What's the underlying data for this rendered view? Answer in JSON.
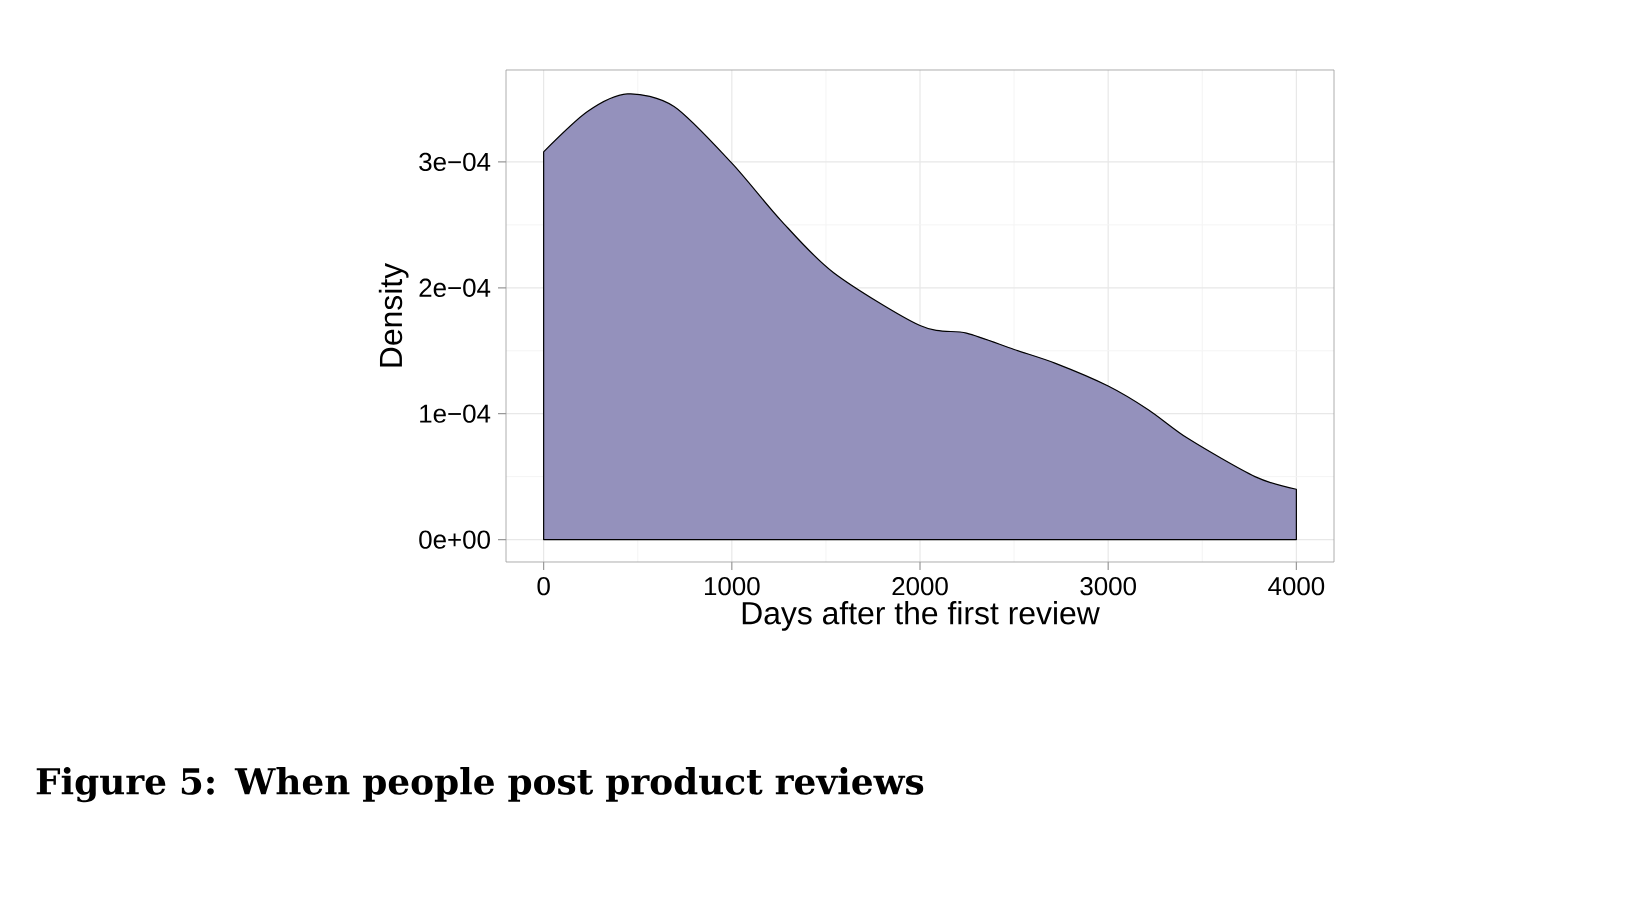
{
  "chart_data": {
    "type": "area",
    "xlabel": "Days after the first review",
    "ylabel": "Density",
    "annotations": [
      "**Figure 5: When people post product reviews**"
    ],
    "x": [
      0,
      233,
      445,
      693,
      1000,
      1258,
      1541,
      2000,
      2247,
      2500,
      2720,
      3000,
      3215,
      3427,
      3780,
      4000
    ],
    "series": [
      {
        "color": "#9491bc",
        "values": [
          0.000308,
          0.00034,
          0.000354,
          0.000344,
          0.000299,
          0.000254,
          0.000212,
          0.00017,
          0.000164,
          0.000151,
          0.00014,
          0.000122,
          0.000103,
          8e-05,
          5e-05,
          4e-05
        ]
      }
    ],
    "xlim": [
      -200,
      4200
    ],
    "ylim": [
      -1.78e-05,
      0.000373
    ],
    "xticks": [
      0,
      1000,
      2000,
      3000,
      4000
    ],
    "yticks": [
      {
        "value": 0,
        "label": "0e+00"
      },
      {
        "value": 0.0001,
        "label": "1e−04"
      },
      {
        "value": 0.0002,
        "label": "2e−04"
      },
      {
        "value": 0.0003,
        "label": "3e−04"
      }
    ],
    "grid": true
  }
}
